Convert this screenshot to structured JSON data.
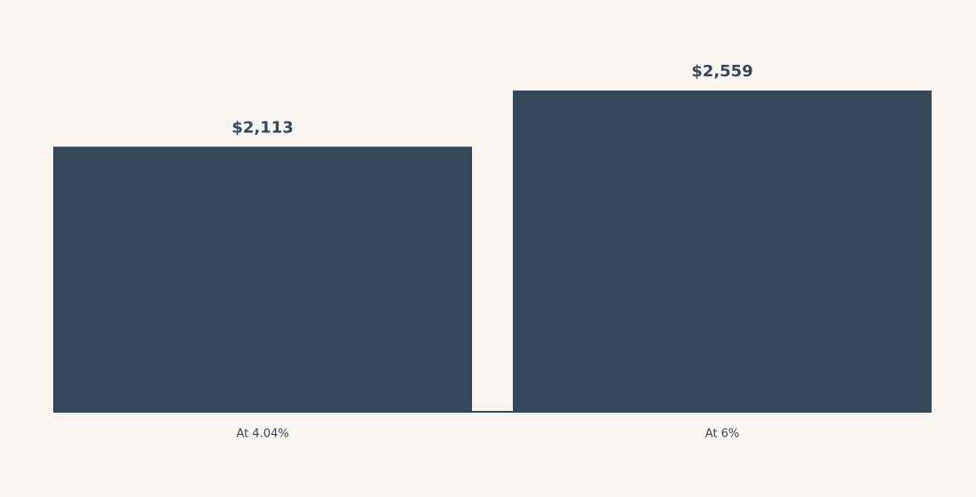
{
  "chart_data": {
    "type": "bar",
    "categories": [
      "At 4.04%",
      "At 6%"
    ],
    "values": [
      2113,
      2559
    ],
    "value_labels": [
      "$2,113",
      "$2,559"
    ],
    "color": "#36475a"
  }
}
